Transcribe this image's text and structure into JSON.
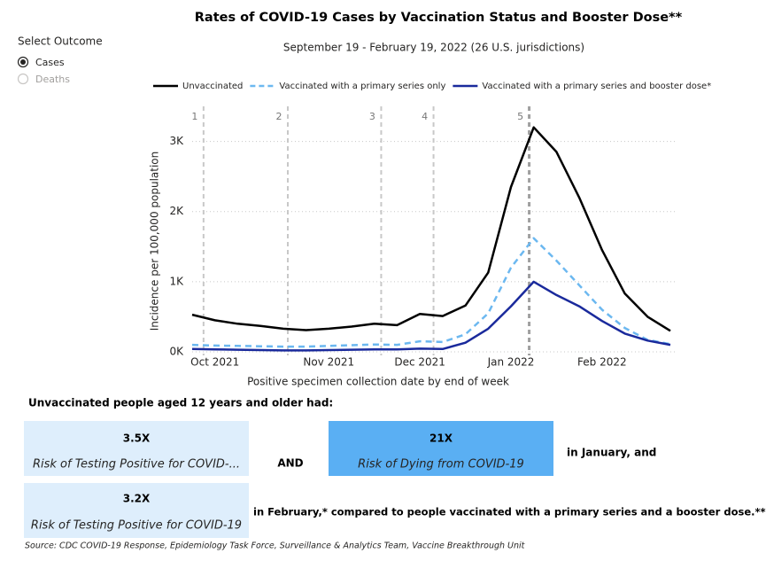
{
  "chart_data": {
    "type": "line",
    "title": "Rates of COVID-19 Cases by Vaccination Status and Booster Dose**",
    "subtitle": "September 19 - February 19, 2022 (26 U.S. jurisdictions)",
    "x_label": "Positive specimen collection date by end of week",
    "y_label": "Incidence per 100,000 population",
    "categories": [
      null,
      "Oct 2021",
      null,
      null,
      null,
      null,
      "Nov 2021",
      null,
      null,
      null,
      "Dec 2021",
      null,
      null,
      null,
      "Jan 2022",
      null,
      null,
      null,
      "Feb 2022",
      null,
      null,
      null
    ],
    "series": [
      {
        "name": "Unvaccinated",
        "color": "#000000",
        "dash": false,
        "values": [
          530,
          450,
          400,
          370,
          330,
          310,
          330,
          360,
          400,
          380,
          540,
          510,
          660,
          1130,
          2350,
          3200,
          2850,
          2200,
          1450,
          830,
          500,
          300
        ]
      },
      {
        "name": "Vaccinated with a primary series only",
        "color": "#6cb8f0",
        "dash": true,
        "values": [
          100,
          90,
          85,
          80,
          75,
          75,
          85,
          95,
          105,
          100,
          150,
          140,
          250,
          550,
          1200,
          1620,
          1300,
          950,
          600,
          340,
          170,
          110
        ]
      },
      {
        "name": "Vaccinated with a primary series and booster dose*",
        "color": "#1a2a9c",
        "dash": false,
        "values": [
          40,
          35,
          30,
          25,
          20,
          20,
          25,
          30,
          35,
          35,
          45,
          40,
          130,
          330,
          650,
          1000,
          810,
          650,
          440,
          260,
          160,
          100
        ]
      }
    ],
    "ylim": [
      0,
      3500
    ],
    "yticks": [
      {
        "value": 0,
        "label": "0K"
      },
      {
        "value": 1000,
        "label": "1K"
      },
      {
        "value": 2000,
        "label": "2K"
      },
      {
        "value": 3000,
        "label": "3K"
      }
    ],
    "grid": true,
    "legend": "top",
    "annotations": [
      {
        "text": "1",
        "x": 0.5
      },
      {
        "text": "2",
        "x": 4.2
      },
      {
        "text": "3",
        "x": 8.3
      },
      {
        "text": "4",
        "x": 10.6
      },
      {
        "text": "5",
        "x": 14.8
      }
    ]
  },
  "filter": {
    "title": "Select Outcome",
    "options": [
      "Cases",
      "Deaths"
    ],
    "selected": "Cases"
  },
  "summary": {
    "heading": "Unvaccinated people aged 12 years and older had:",
    "box1": {
      "value": "3.5X",
      "label": "Risk of Testing Positive for COVID-..."
    },
    "and": "AND",
    "box2": {
      "value": "21X",
      "label": "Risk of Dying from COVID-19"
    },
    "after_box2": "in January, and",
    "box3": {
      "value": "3.2X",
      "label": "Risk of Testing Positive for COVID-19"
    },
    "after_box3": "in February,* compared to people vaccinated with a primary series and a booster dose.**"
  },
  "source": "Source: CDC COVID-19 Response, Epidemiology Task Force, Surveillance & Analytics Team, Vaccine Breakthrough Unit"
}
